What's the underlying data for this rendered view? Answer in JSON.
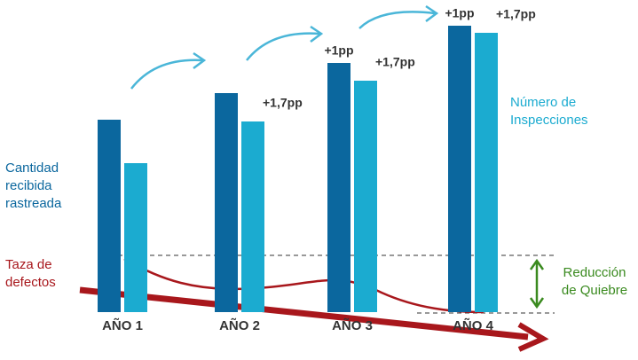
{
  "chart_data": {
    "type": "bar",
    "categories": [
      "AÑO 1",
      "AÑO 2",
      "AÑO 3",
      "AÑO 4"
    ],
    "series": [
      {
        "name": "Cantidad recibida rastreada",
        "name_lines": [
          "Cantidad",
          "recibida",
          "rastreada"
        ],
        "color": "#0b679e",
        "values": [
          217,
          247,
          281,
          323
        ],
        "annotations": [
          null,
          null,
          "+1pp",
          "+1pp"
        ]
      },
      {
        "name": "Número de Inspecciones",
        "name_lines": [
          "Número de",
          "Inspecciones"
        ],
        "color": "#1babd0",
        "values": [
          168,
          215,
          261,
          315
        ],
        "annotations": [
          null,
          "+1,7pp",
          "+1,7pp",
          "+1,7pp"
        ]
      }
    ],
    "ylim": [
      0,
      330
    ],
    "defect_label": [
      "Taza de",
      "defectos"
    ],
    "defect_color": "#a8171c",
    "reduction_label": [
      "Reducción",
      "de Quiebre"
    ],
    "reduction_color": "#3a8a1f"
  }
}
